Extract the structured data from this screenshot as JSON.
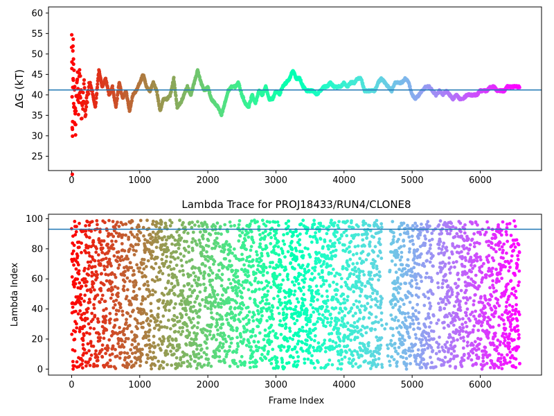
{
  "chart_data": [
    {
      "type": "scatter",
      "title": "",
      "xlabel": "",
      "ylabel": "ΔG (kT)",
      "xlim": [
        -340,
        6900
      ],
      "ylim": [
        21.5,
        61.5
      ],
      "xticks": [
        0,
        1000,
        2000,
        3000,
        4000,
        5000,
        6000
      ],
      "yticks": [
        25,
        30,
        35,
        40,
        45,
        50,
        55,
        60
      ],
      "hline": 41.2,
      "hline_color": "#1f77b4",
      "colormap": "rainbow (red at frame 0 to violet at last frame)",
      "grid": false,
      "legend": "none",
      "x_range": [
        0,
        6580
      ],
      "series": [
        {
          "description": "running free energy estimate per frame",
          "points": [
            [
              0,
              58
            ],
            [
              10,
              26
            ],
            [
              20,
              50
            ],
            [
              30,
              44
            ],
            [
              45,
              36
            ],
            [
              60,
              33
            ],
            [
              80,
              45
            ],
            [
              100,
              37
            ],
            [
              120,
              44
            ],
            [
              150,
              34
            ],
            [
              180,
              42
            ],
            [
              200,
              36
            ],
            [
              230,
              39
            ],
            [
              260,
              43
            ],
            [
              300,
              41
            ],
            [
              350,
              37
            ],
            [
              400,
              46
            ],
            [
              450,
              42
            ],
            [
              500,
              44
            ],
            [
              550,
              40
            ],
            [
              600,
              42
            ],
            [
              650,
              37
            ],
            [
              700,
              43
            ],
            [
              750,
              39
            ],
            [
              800,
              41
            ],
            [
              850,
              36
            ],
            [
              900,
              40
            ],
            [
              950,
              41
            ],
            [
              1000,
              43
            ],
            [
              1050,
              45
            ],
            [
              1100,
              42
            ],
            [
              1150,
              41
            ],
            [
              1200,
              43
            ],
            [
              1250,
              41
            ],
            [
              1300,
              36
            ],
            [
              1350,
              39
            ],
            [
              1400,
              39
            ],
            [
              1450,
              40
            ],
            [
              1500,
              44
            ],
            [
              1550,
              37
            ],
            [
              1600,
              38
            ],
            [
              1650,
              40
            ],
            [
              1700,
              42
            ],
            [
              1750,
              40
            ],
            [
              1800,
              43
            ],
            [
              1850,
              46
            ],
            [
              1900,
              43
            ],
            [
              1950,
              41
            ],
            [
              2000,
              42
            ],
            [
              2050,
              39
            ],
            [
              2100,
              38
            ],
            [
              2150,
              37
            ],
            [
              2200,
              35
            ],
            [
              2250,
              38
            ],
            [
              2300,
              41
            ],
            [
              2350,
              42
            ],
            [
              2400,
              42
            ],
            [
              2450,
              43
            ],
            [
              2500,
              40
            ],
            [
              2550,
              38
            ],
            [
              2600,
              37
            ],
            [
              2650,
              40
            ],
            [
              2700,
              38
            ],
            [
              2750,
              41
            ],
            [
              2800,
              40
            ],
            [
              2850,
              42
            ],
            [
              2900,
              39
            ],
            [
              2950,
              39
            ],
            [
              3000,
              41
            ],
            [
              3050,
              40
            ],
            [
              3100,
              42
            ],
            [
              3150,
              43
            ],
            [
              3200,
              44
            ],
            [
              3250,
              46
            ],
            [
              3300,
              44
            ],
            [
              3350,
              44
            ],
            [
              3400,
              42
            ],
            [
              3450,
              41
            ],
            [
              3500,
              41
            ],
            [
              3550,
              41
            ],
            [
              3600,
              40
            ],
            [
              3650,
              41
            ],
            [
              3700,
              42
            ],
            [
              3750,
              42
            ],
            [
              3800,
              43
            ],
            [
              3850,
              42
            ],
            [
              3900,
              42
            ],
            [
              3950,
              42
            ],
            [
              4000,
              43
            ],
            [
              4050,
              42
            ],
            [
              4100,
              43
            ],
            [
              4150,
              43
            ],
            [
              4200,
              44
            ],
            [
              4250,
              44
            ],
            [
              4300,
              41
            ],
            [
              4350,
              41
            ],
            [
              4400,
              41
            ],
            [
              4450,
              41
            ],
            [
              4500,
              43
            ],
            [
              4550,
              44
            ],
            [
              4600,
              43
            ],
            [
              4650,
              42
            ],
            [
              4700,
              41
            ],
            [
              4750,
              43
            ],
            [
              4800,
              43
            ],
            [
              4850,
              43
            ],
            [
              4900,
              44
            ],
            [
              4950,
              43
            ],
            [
              5000,
              40
            ],
            [
              5050,
              39
            ],
            [
              5100,
              40
            ],
            [
              5150,
              41
            ],
            [
              5200,
              42
            ],
            [
              5250,
              42
            ],
            [
              5300,
              41
            ],
            [
              5350,
              40
            ],
            [
              5400,
              41
            ],
            [
              5450,
              40
            ],
            [
              5500,
              41
            ],
            [
              5550,
              40
            ],
            [
              5600,
              39
            ],
            [
              5650,
              40
            ],
            [
              5700,
              39
            ],
            [
              5750,
              39
            ],
            [
              5800,
              40
            ],
            [
              5850,
              40
            ],
            [
              5900,
              40
            ],
            [
              5950,
              40
            ],
            [
              6000,
              41
            ],
            [
              6050,
              41
            ],
            [
              6100,
              41
            ],
            [
              6150,
              42
            ],
            [
              6200,
              42
            ],
            [
              6250,
              41
            ],
            [
              6300,
              41
            ],
            [
              6350,
              41
            ],
            [
              6400,
              42
            ],
            [
              6450,
              42
            ],
            [
              6500,
              42
            ],
            [
              6550,
              42
            ],
            [
              6580,
              42
            ]
          ]
        }
      ]
    },
    {
      "type": "scatter",
      "title": "Lambda Trace for PROJ18433/RUN4/CLONE8",
      "xlabel": "Frame Index",
      "ylabel": "Lambda Index",
      "xlim": [
        -340,
        6900
      ],
      "ylim": [
        -4,
        103
      ],
      "xticks": [
        0,
        1000,
        2000,
        3000,
        4000,
        5000,
        6000
      ],
      "yticks": [
        0,
        20,
        40,
        60,
        80,
        100
      ],
      "hline": 93,
      "hline_color": "#1f77b4",
      "colormap": "rainbow (red at frame 0 to violet at last frame)",
      "grid": false,
      "legend": "none",
      "x_range": [
        0,
        6580
      ],
      "y_range": [
        0,
        99
      ],
      "sparse_frame_ranges": [
        [
          4560,
          4680
        ],
        [
          5320,
          5380
        ]
      ],
      "point_count": 4200
    }
  ]
}
